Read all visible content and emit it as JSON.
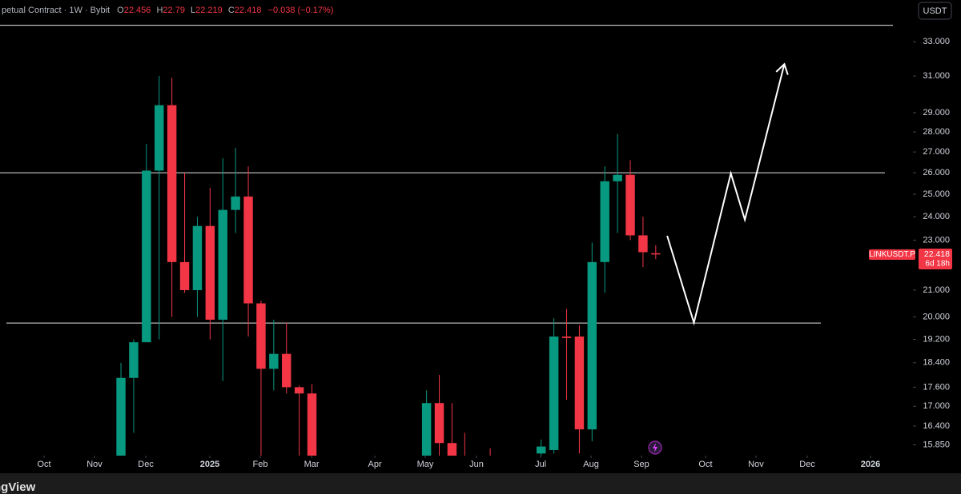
{
  "chart_data": {
    "type": "candlestick",
    "header": "petual Contract · 1W · Bybit",
    "header_ohlc_labels": [
      "O",
      "H",
      "L",
      "C"
    ],
    "change_label": "−0.038 (−0.17%)",
    "currency": "USDT",
    "symbol": "LINKUSDT.P",
    "countdown": "6d 18h",
    "watermark": "ngView",
    "up_color": "#089981",
    "down_color": "#f23645",
    "log_scale": true,
    "grid": false,
    "open": [
      15.5,
      17.9,
      19.1,
      26.1,
      29.4,
      22.1,
      21.0,
      23.6,
      19.9,
      24.3,
      24.9,
      20.5,
      18.2,
      18.7,
      17.6,
      17.4,
      null,
      null,
      null,
      null,
      null,
      null,
      null,
      null,
      15.5,
      17.1,
      15.9,
      15.4,
      null,
      15.4,
      null,
      null,
      null,
      15.6,
      15.7,
      19.3,
      19.3,
      16.3,
      22.1,
      25.6,
      25.9,
      23.2,
      22.456
    ],
    "high": [
      18.4,
      19.2,
      27.4,
      31.0,
      30.9,
      26.0,
      24.0,
      25.3,
      26.7,
      27.2,
      26.3,
      20.6,
      19.9,
      19.8,
      17.65,
      17.7,
      null,
      null,
      null,
      null,
      null,
      null,
      null,
      null,
      17.5,
      18.0,
      17.1,
      16.2,
      null,
      15.75,
      null,
      null,
      null,
      16.0,
      19.95,
      20.3,
      19.7,
      22.9,
      26.3,
      27.9,
      26.6,
      24.0,
      22.79
    ],
    "low": [
      15.3,
      16.2,
      19.2,
      19.2,
      20.0,
      20.9,
      20.0,
      19.2,
      17.8,
      23.3,
      19.3,
      15.5,
      17.5,
      17.4,
      15.5,
      15.3,
      null,
      null,
      null,
      null,
      null,
      null,
      null,
      null,
      15.3,
      15.3,
      15.3,
      15.2,
      null,
      15.2,
      null,
      null,
      null,
      15.4,
      15.6,
      17.2,
      15.6,
      15.95,
      20.9,
      23.3,
      23.0,
      21.9,
      22.219
    ],
    "close": [
      17.9,
      19.1,
      26.1,
      29.4,
      22.1,
      21.0,
      23.6,
      19.9,
      24.3,
      24.9,
      20.5,
      18.2,
      18.7,
      17.6,
      17.4,
      15.5,
      null,
      null,
      null,
      null,
      null,
      null,
      null,
      null,
      17.1,
      15.9,
      15.5,
      15.3,
      null,
      15.3,
      null,
      null,
      null,
      15.8,
      19.3,
      19.25,
      16.3,
      22.1,
      25.6,
      25.9,
      23.2,
      22.5,
      22.418
    ],
    "ylim": [
      15.54,
      35.6
    ],
    "yticks": [
      {
        "value": 15.85,
        "label": "15.850"
      },
      {
        "value": 16.4,
        "label": "16.400"
      },
      {
        "value": 17,
        "label": "17.000"
      },
      {
        "value": 17.6,
        "label": "17.600"
      },
      {
        "value": 18.4,
        "label": "18.400"
      },
      {
        "value": 19.2,
        "label": "19.200"
      },
      {
        "value": 20,
        "label": "20.000"
      },
      {
        "value": 21,
        "label": "21.000"
      },
      {
        "value": 23,
        "label": "23.000"
      },
      {
        "value": 24,
        "label": "24.000"
      },
      {
        "value": 25,
        "label": "25.000"
      },
      {
        "value": 26,
        "label": "26.000"
      },
      {
        "value": 27,
        "label": "27.000"
      },
      {
        "value": 28,
        "label": "28.000"
      },
      {
        "value": 29,
        "label": "29.000"
      },
      {
        "value": 31,
        "label": "31.000"
      },
      {
        "value": 33,
        "label": "33.000"
      }
    ],
    "xlim": [
      -9.5,
      62.2
    ],
    "xticks": [
      {
        "value": -6.04,
        "label": "Oct"
      },
      {
        "value": -2.08,
        "label": "Nov"
      },
      {
        "value": 1.95,
        "label": "Dec"
      },
      {
        "value": 6.98,
        "label": "2025"
      },
      {
        "value": 10.94,
        "label": "Feb"
      },
      {
        "value": 14.97,
        "label": "Mar"
      },
      {
        "value": 19.94,
        "label": "Apr"
      },
      {
        "value": 23.9,
        "label": "May"
      },
      {
        "value": 27.92,
        "label": "Jun"
      },
      {
        "value": 32.96,
        "label": "Jul"
      },
      {
        "value": 36.92,
        "label": "Aug"
      },
      {
        "value": 40.88,
        "label": "Sep"
      },
      {
        "value": 45.91,
        "label": "Oct"
      },
      {
        "value": 49.87,
        "label": "Nov"
      },
      {
        "value": 53.9,
        "label": "Dec"
      },
      {
        "value": 58.87,
        "label": "2026"
      }
    ],
    "hlines": [
      34.0,
      26.0,
      19.78
    ],
    "projection": {
      "x": [
        42.9,
        45.0,
        47.9,
        49.0,
        52.1
      ],
      "values": [
        23.18,
        19.79,
        25.97,
        23.87,
        31.68
      ]
    }
  }
}
